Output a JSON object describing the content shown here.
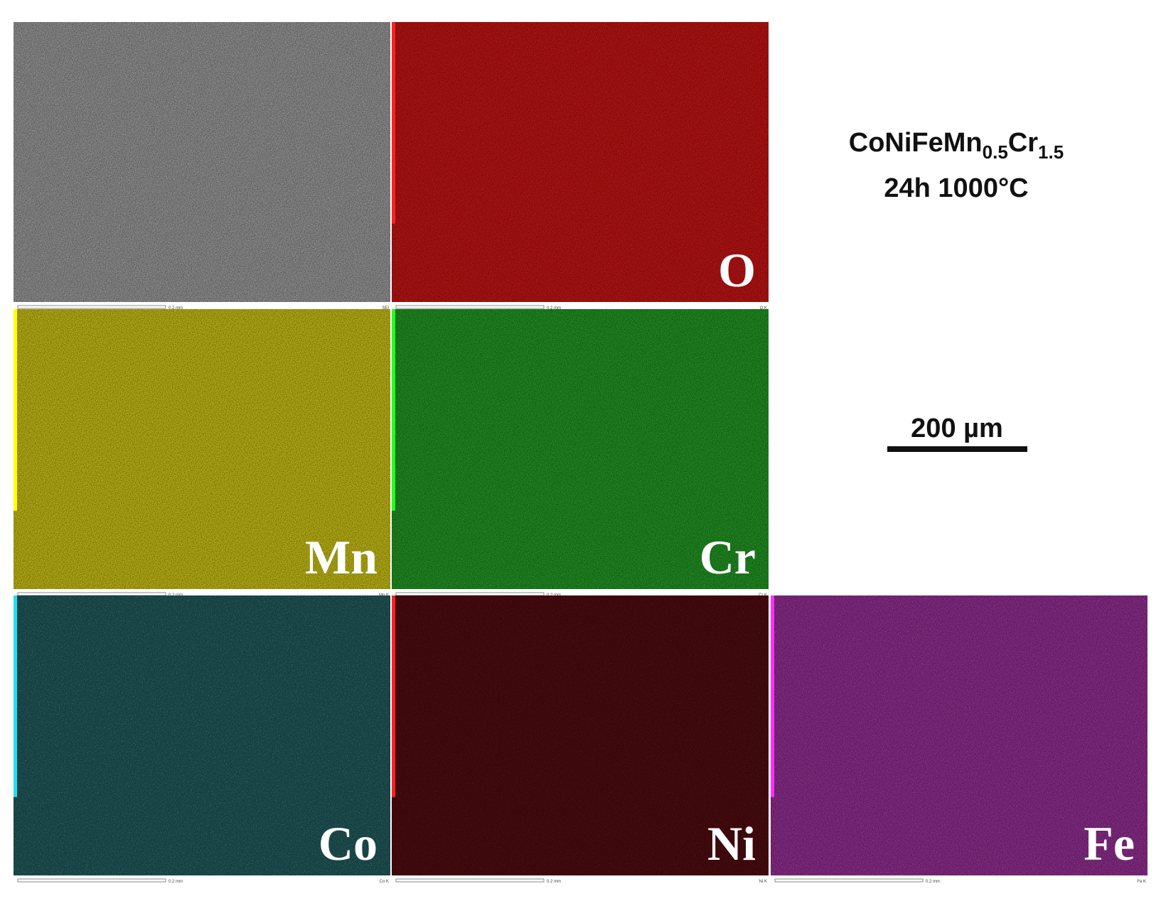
{
  "title": {
    "formula": {
      "base": "CoNiFeMn",
      "sub1": "0.5",
      "mid": "Cr",
      "sub2": "1.5"
    },
    "condition": "24h 1000°C"
  },
  "scale_bar": {
    "label": "200 µm"
  },
  "panels": [
    {
      "scale": "0.2 mm",
      "detector": "SEI"
    },
    {
      "label": "O",
      "scale": "0.2 mm",
      "detector": "O K"
    },
    {
      "label": "Mn",
      "scale": "0.2 mm",
      "detector": "Mn K"
    },
    {
      "label": "Cr",
      "scale": "0.2 mm",
      "detector": "Cr K"
    },
    {
      "label": "Co",
      "scale": "0.2 mm",
      "detector": "Co K"
    },
    {
      "label": "Ni",
      "scale": "0.2 mm",
      "detector": "Ni K"
    },
    {
      "label": "Fe",
      "scale": "0.2 mm",
      "detector": "Fe K"
    }
  ]
}
